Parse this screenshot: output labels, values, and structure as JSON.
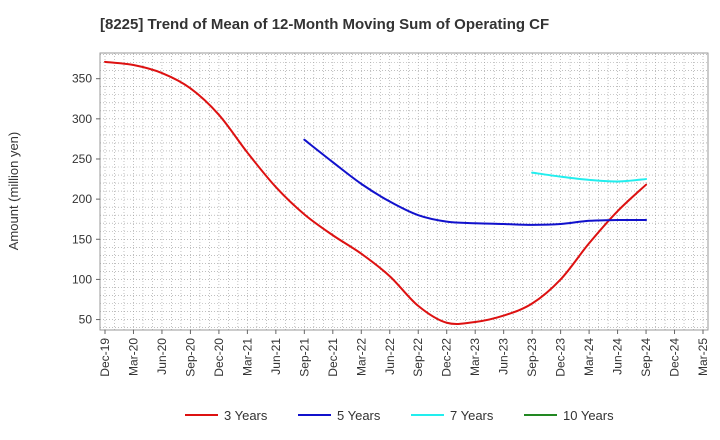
{
  "chart_data": {
    "type": "line",
    "title": "[8225]  Trend of Mean of 12-Month Moving Sum of Operating CF",
    "xlabel": "",
    "ylabel": "Amount (million yen)",
    "ylim": [
      37,
      382
    ],
    "yticks": [
      50,
      100,
      150,
      200,
      250,
      300,
      350
    ],
    "categories": [
      "Dec-19",
      "Mar-20",
      "Jun-20",
      "Sep-20",
      "Dec-20",
      "Mar-21",
      "Jun-21",
      "Sep-21",
      "Dec-21",
      "Mar-22",
      "Jun-22",
      "Sep-22",
      "Dec-22",
      "Mar-23",
      "Jun-23",
      "Sep-23",
      "Dec-23",
      "Mar-24",
      "Jun-24",
      "Sep-24",
      "Dec-24",
      "Mar-25"
    ],
    "grid": true,
    "legend_position": "bottom",
    "series": [
      {
        "name": "3 Years",
        "color": "#dd1111",
        "values": [
          371,
          367,
          357,
          338,
          305,
          258,
          215,
          181,
          155,
          132,
          104,
          67,
          46,
          47,
          55,
          70,
          100,
          145,
          185,
          218,
          null,
          null
        ]
      },
      {
        "name": "5 Years",
        "color": "#1111cc",
        "values": [
          null,
          null,
          null,
          null,
          null,
          null,
          null,
          274,
          246,
          219,
          197,
          180,
          172,
          170,
          169,
          168,
          169,
          173,
          174,
          174,
          null,
          null
        ]
      },
      {
        "name": "7 Years",
        "color": "#22eeee",
        "values": [
          null,
          null,
          null,
          null,
          null,
          null,
          null,
          null,
          null,
          null,
          null,
          null,
          null,
          null,
          null,
          233,
          228,
          224,
          222,
          225,
          null,
          null
        ]
      },
      {
        "name": "10 Years",
        "color": "#228822",
        "values": [
          null,
          null,
          null,
          null,
          null,
          null,
          null,
          null,
          null,
          null,
          null,
          null,
          null,
          null,
          null,
          null,
          null,
          null,
          null,
          null,
          null,
          null
        ]
      }
    ]
  }
}
